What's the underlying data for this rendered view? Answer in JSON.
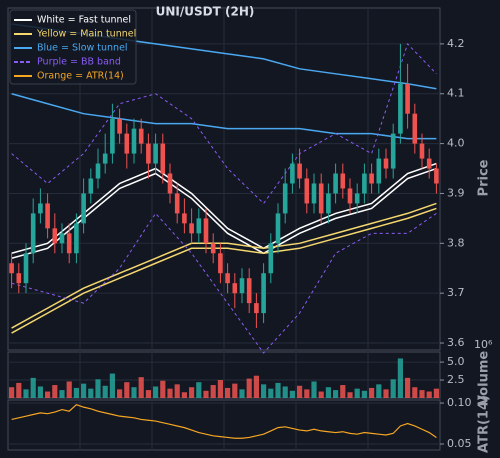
{
  "chart_data": {
    "type": "candlestick",
    "title": "UNI/USDT (2H)",
    "open": [
      3.76,
      3.74,
      3.72,
      3.78,
      3.86,
      3.88,
      3.83,
      3.8,
      3.82,
      3.78,
      3.84,
      3.9,
      3.93,
      3.96,
      3.98,
      4.05,
      4.02,
      3.98,
      4.03,
      4.0,
      3.96,
      4.0,
      3.94,
      3.9,
      3.86,
      3.84,
      3.82,
      3.85,
      3.8,
      3.78,
      3.74,
      3.72,
      3.7,
      3.73,
      3.68,
      3.66,
      3.74,
      3.8,
      3.86,
      3.92,
      3.96,
      3.93,
      3.88,
      3.92,
      3.86,
      3.9,
      3.94,
      3.91,
      3.88,
      3.9,
      3.94,
      3.92,
      3.97,
      3.95,
      4.02,
      4.12,
      4.06,
      4.0,
      3.97,
      3.95
    ],
    "high": [
      3.78,
      3.76,
      3.8,
      3.89,
      3.91,
      3.9,
      3.86,
      3.84,
      3.84,
      3.86,
      3.93,
      3.95,
      3.99,
      4.02,
      4.08,
      4.07,
      4.04,
      4.05,
      4.05,
      4.02,
      4.02,
      4.02,
      3.96,
      3.92,
      3.89,
      3.87,
      3.87,
      3.87,
      3.82,
      3.8,
      3.76,
      3.74,
      3.75,
      3.75,
      3.7,
      3.76,
      3.82,
      3.88,
      3.95,
      3.98,
      3.99,
      3.95,
      3.94,
      3.94,
      3.92,
      3.96,
      3.96,
      3.93,
      3.92,
      3.96,
      3.96,
      3.99,
      3.99,
      4.04,
      4.2,
      4.16,
      4.08,
      4.02,
      3.99,
      3.96
    ],
    "low": [
      3.71,
      3.7,
      3.7,
      3.76,
      3.84,
      3.81,
      3.78,
      3.78,
      3.76,
      3.76,
      3.82,
      3.88,
      3.91,
      3.94,
      3.96,
      4.0,
      3.95,
      3.96,
      3.98,
      3.93,
      3.94,
      3.92,
      3.88,
      3.84,
      3.82,
      3.8,
      3.8,
      3.78,
      3.76,
      3.72,
      3.7,
      3.67,
      3.68,
      3.66,
      3.63,
      3.64,
      3.72,
      3.78,
      3.84,
      3.9,
      3.91,
      3.86,
      3.86,
      3.84,
      3.84,
      3.88,
      3.89,
      3.86,
      3.86,
      3.88,
      3.9,
      3.9,
      3.93,
      3.93,
      4.0,
      4.03,
      3.98,
      3.95,
      3.93,
      3.9
    ],
    "close": [
      3.74,
      3.72,
      3.78,
      3.86,
      3.88,
      3.83,
      3.8,
      3.82,
      3.78,
      3.84,
      3.9,
      3.93,
      3.96,
      3.98,
      4.05,
      4.02,
      3.98,
      4.03,
      4.0,
      3.96,
      4.0,
      3.94,
      3.9,
      3.86,
      3.84,
      3.82,
      3.85,
      3.8,
      3.78,
      3.74,
      3.72,
      3.7,
      3.73,
      3.68,
      3.66,
      3.74,
      3.8,
      3.86,
      3.92,
      3.96,
      3.93,
      3.88,
      3.92,
      3.86,
      3.9,
      3.94,
      3.91,
      3.88,
      3.9,
      3.94,
      3.92,
      3.97,
      3.95,
      4.02,
      4.12,
      4.06,
      4.0,
      3.97,
      3.95,
      3.92
    ],
    "up_color": "#26a69a",
    "down_color": "#ef5350",
    "ylabel": "Price",
    "ylim": [
      3.586,
      4.272
    ],
    "yticks": [
      3.6,
      3.7,
      3.8,
      3.9,
      {
        "value": 4.0,
        "label": "4.0"
      },
      4.1,
      4.2
    ],
    "grid": true,
    "line_x": [
      0,
      5,
      10,
      15,
      20,
      25,
      30,
      35,
      40,
      45,
      50,
      55,
      59
    ],
    "series": [
      {
        "name": "White = Fast tunnel",
        "color": "#ffffff",
        "dash": false,
        "values": [
          3.78,
          3.8,
          3.86,
          3.92,
          3.95,
          3.9,
          3.83,
          3.79,
          3.83,
          3.86,
          3.88,
          3.94,
          3.96
        ],
        "values2": [
          3.77,
          3.79,
          3.85,
          3.91,
          3.94,
          3.89,
          3.82,
          3.78,
          3.82,
          3.85,
          3.87,
          3.93,
          3.95
        ]
      },
      {
        "name": "Yellow = Main tunnel",
        "color": "#f5d76e",
        "dash": false,
        "values": [
          3.63,
          3.67,
          3.71,
          3.74,
          3.77,
          3.8,
          3.8,
          3.79,
          3.8,
          3.82,
          3.84,
          3.86,
          3.88
        ],
        "values2": [
          3.62,
          3.66,
          3.7,
          3.73,
          3.76,
          3.79,
          3.79,
          3.78,
          3.79,
          3.81,
          3.83,
          3.85,
          3.87
        ]
      },
      {
        "name": "Blue = Slow tunnel",
        "color": "#4aa8f0",
        "dash": false,
        "values": [
          4.24,
          4.23,
          4.22,
          4.21,
          4.2,
          4.19,
          4.18,
          4.17,
          4.15,
          4.14,
          4.13,
          4.12,
          4.11
        ],
        "values2": [
          4.1,
          4.08,
          4.06,
          4.05,
          4.04,
          4.04,
          4.03,
          4.03,
          4.03,
          4.02,
          4.02,
          4.01,
          4.01
        ]
      },
      {
        "name": "Purple = BB band",
        "color": "#8a5cf5",
        "dash": true,
        "values": [
          3.98,
          3.92,
          3.98,
          4.08,
          4.1,
          4.05,
          3.95,
          3.88,
          3.98,
          4.02,
          3.98,
          4.2,
          4.14
        ],
        "values2": [
          3.72,
          3.7,
          3.68,
          3.75,
          3.86,
          3.78,
          3.68,
          3.58,
          3.66,
          3.78,
          3.82,
          3.82,
          3.86
        ]
      }
    ],
    "volume": {
      "type": "bar",
      "ylabel": "Volume",
      "multiplier": "10⁶",
      "values": [
        1.5,
        2.1,
        1.2,
        2.8,
        1.6,
        0.9,
        1.8,
        1.1,
        2.3,
        1.4,
        2.0,
        1.3,
        2.6,
        1.7,
        3.4,
        1.2,
        2.2,
        1.5,
        2.9,
        1.1,
        1.6,
        2.4,
        1.3,
        1.9,
        0.8,
        1.5,
        2.2,
        1.0,
        1.8,
        2.5,
        1.4,
        2.0,
        1.2,
        2.7,
        3.1,
        1.9,
        1.3,
        2.1,
        1.6,
        1.0,
        1.7,
        1.2,
        2.3,
        0.9,
        1.5,
        1.1,
        1.8,
        0.8,
        1.3,
        1.0,
        1.4,
        1.9,
        1.2,
        2.6,
        5.5,
        2.8,
        1.5,
        1.1,
        0.9,
        1.3
      ],
      "ylim": [
        0,
        6.4
      ],
      "yticks": [
        2.5,
        {
          "value": 5,
          "label": "5.0"
        }
      ]
    },
    "atr": {
      "type": "line",
      "ylabel": "ATR(14)",
      "name": "Orange = ATR(14)",
      "color": "#f5a623",
      "values": [
        0.08,
        0.082,
        0.084,
        0.086,
        0.088,
        0.087,
        0.089,
        0.092,
        0.09,
        0.098,
        0.095,
        0.093,
        0.09,
        0.088,
        0.086,
        0.084,
        0.083,
        0.082,
        0.08,
        0.079,
        0.078,
        0.076,
        0.074,
        0.072,
        0.07,
        0.067,
        0.064,
        0.062,
        0.06,
        0.059,
        0.058,
        0.057,
        0.057,
        0.058,
        0.06,
        0.062,
        0.066,
        0.07,
        0.071,
        0.069,
        0.067,
        0.066,
        0.068,
        0.066,
        0.065,
        0.064,
        0.065,
        0.063,
        0.062,
        0.064,
        0.063,
        0.062,
        0.061,
        0.063,
        0.072,
        0.075,
        0.072,
        0.068,
        0.064,
        0.058
      ],
      "ylim": [
        0.0427,
        0.1037
      ],
      "yticks": [
        {
          "value": 0.1,
          "label": "0.10"
        },
        {
          "value": 0.05,
          "label": "0.05"
        }
      ]
    }
  }
}
